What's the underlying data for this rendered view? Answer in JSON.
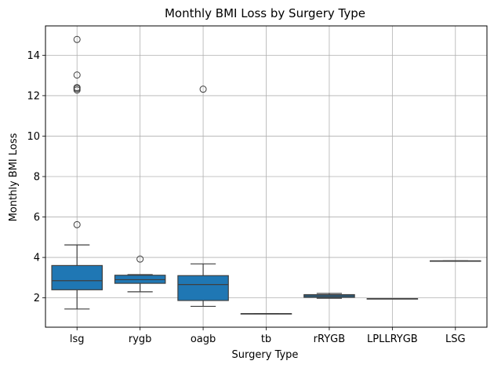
{
  "chart_data": {
    "type": "box",
    "title": "Monthly BMI Loss by Surgery Type",
    "xlabel": "Surgery Type",
    "ylabel": "Monthly BMI Loss",
    "ylim": [
      0.55,
      15.45
    ],
    "yticks": [
      2,
      4,
      6,
      8,
      10,
      12,
      14
    ],
    "grid": true,
    "box_color": "#1f77b4",
    "categories": [
      "lsg",
      "rygb",
      "oagb",
      "tb",
      "rRYGB",
      "LPLLRYGB",
      "LSG"
    ],
    "boxes": [
      {
        "category": "lsg",
        "whisker_low": 1.45,
        "q1": 2.4,
        "median": 2.85,
        "q3": 3.6,
        "whisker_high": 4.62,
        "outliers": [
          5.62,
          12.28,
          12.35,
          12.4,
          13.02,
          14.78
        ]
      },
      {
        "category": "rygb",
        "whisker_low": 2.3,
        "q1": 2.72,
        "median": 2.9,
        "q3": 3.12,
        "whisker_high": 3.15,
        "outliers": [
          3.92
        ]
      },
      {
        "category": "oagb",
        "whisker_low": 1.58,
        "q1": 1.87,
        "median": 2.66,
        "q3": 3.1,
        "whisker_high": 3.68,
        "outliers": [
          12.32
        ]
      },
      {
        "category": "tb",
        "whisker_low": 1.22,
        "q1": 1.22,
        "median": 1.22,
        "q3": 1.22,
        "whisker_high": 1.22,
        "outliers": []
      },
      {
        "category": "rRYGB",
        "whisker_low": 1.98,
        "q1": 2.03,
        "median": 2.1,
        "q3": 2.16,
        "whisker_high": 2.22,
        "outliers": []
      },
      {
        "category": "LPLLRYGB",
        "whisker_low": 1.96,
        "q1": 1.96,
        "median": 1.96,
        "q3": 1.96,
        "whisker_high": 1.96,
        "outliers": []
      },
      {
        "category": "LSG",
        "whisker_low": 3.83,
        "q1": 3.83,
        "median": 3.83,
        "q3": 3.83,
        "whisker_high": 3.83,
        "outliers": []
      }
    ]
  }
}
